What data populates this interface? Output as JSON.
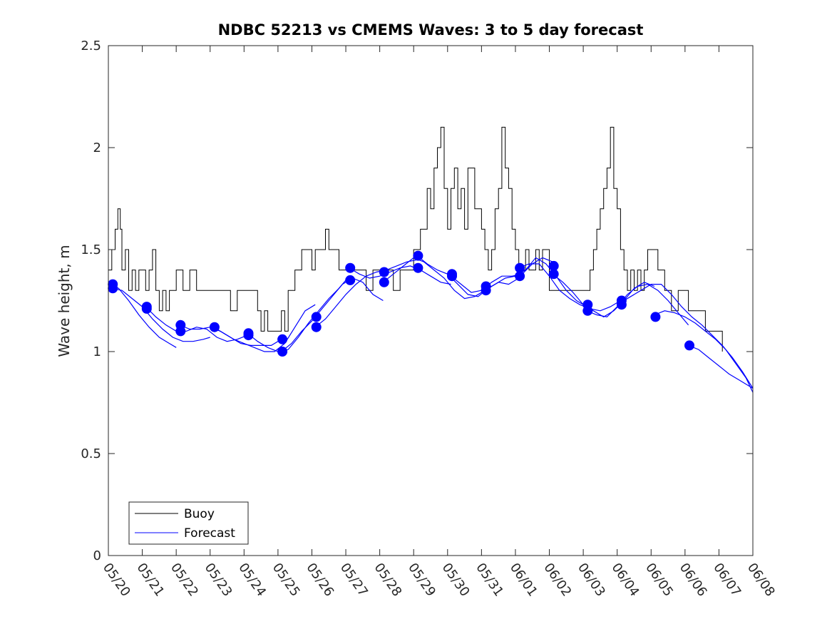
{
  "chart_data": {
    "type": "line",
    "title": "NDBC 52213 vs CMEMS Waves: 3 to 5 day forecast",
    "xlabel": "",
    "ylabel": "Wave height, m",
    "ylim": [
      0,
      2.5
    ],
    "yticks": [
      "0",
      "0.5",
      "1",
      "1.5",
      "2",
      "2.5"
    ],
    "xlim": [
      "05/20",
      "06/08"
    ],
    "xticks": [
      "05/20",
      "05/21",
      "05/22",
      "05/23",
      "05/24",
      "05/25",
      "05/26",
      "05/27",
      "05/28",
      "05/29",
      "05/30",
      "05/31",
      "06/01",
      "06/02",
      "06/03",
      "06/04",
      "06/05",
      "06/06",
      "06/07",
      "06/08"
    ],
    "grid": false,
    "legend": {
      "position": "bottom-left",
      "entries": [
        "Buoy",
        "Forecast"
      ]
    },
    "colors": {
      "buoy": "#000000",
      "forecast": "#0000ff"
    },
    "series": [
      {
        "name": "Buoy",
        "x_days": [
          0.0,
          0.1,
          0.2,
          0.28,
          0.35,
          0.4,
          0.5,
          0.6,
          0.7,
          0.8,
          0.9,
          1.0,
          1.1,
          1.2,
          1.3,
          1.4,
          1.5,
          1.6,
          1.7,
          1.8,
          1.9,
          2.0,
          2.2,
          2.4,
          2.6,
          2.8,
          3.0,
          3.2,
          3.4,
          3.6,
          3.8,
          4.0,
          4.2,
          4.4,
          4.5,
          4.6,
          4.7,
          4.8,
          4.9,
          5.0,
          5.1,
          5.2,
          5.3,
          5.4,
          5.5,
          5.6,
          5.7,
          5.8,
          5.9,
          6.0,
          6.1,
          6.2,
          6.3,
          6.4,
          6.5,
          6.6,
          6.7,
          6.8,
          6.9,
          7.0,
          7.2,
          7.4,
          7.6,
          7.8,
          8.0,
          8.2,
          8.4,
          8.6,
          8.8,
          9.0,
          9.2,
          9.4,
          9.5,
          9.6,
          9.7,
          9.8,
          9.9,
          10.0,
          10.1,
          10.2,
          10.3,
          10.4,
          10.5,
          10.6,
          10.8,
          11.0,
          11.1,
          11.2,
          11.3,
          11.4,
          11.5,
          11.6,
          11.7,
          11.8,
          11.9,
          12.0,
          12.1,
          12.2,
          12.3,
          12.4,
          12.5,
          12.6,
          12.7,
          12.8,
          13.0,
          13.2,
          13.4,
          13.6,
          13.8,
          14.0,
          14.1,
          14.2,
          14.3,
          14.4,
          14.5,
          14.6,
          14.7,
          14.8,
          14.9,
          15.0,
          15.1,
          15.2,
          15.3,
          15.4,
          15.5,
          15.6,
          15.7,
          15.8,
          15.9,
          16.0,
          16.2,
          16.4,
          16.6,
          16.8,
          17.0,
          17.1,
          17.2,
          17.3,
          17.4,
          17.5,
          17.6,
          17.7,
          17.8,
          17.9,
          18.0,
          18.1
        ],
        "values": [
          1.4,
          1.5,
          1.6,
          1.7,
          1.6,
          1.4,
          1.5,
          1.3,
          1.4,
          1.3,
          1.4,
          1.4,
          1.3,
          1.4,
          1.5,
          1.3,
          1.2,
          1.3,
          1.2,
          1.3,
          1.3,
          1.4,
          1.3,
          1.4,
          1.3,
          1.3,
          1.3,
          1.3,
          1.3,
          1.2,
          1.3,
          1.3,
          1.3,
          1.2,
          1.1,
          1.2,
          1.1,
          1.1,
          1.1,
          1.1,
          1.2,
          1.1,
          1.3,
          1.3,
          1.4,
          1.4,
          1.5,
          1.5,
          1.5,
          1.4,
          1.5,
          1.5,
          1.5,
          1.6,
          1.5,
          1.5,
          1.5,
          1.4,
          1.4,
          1.4,
          1.4,
          1.4,
          1.3,
          1.4,
          1.4,
          1.4,
          1.3,
          1.4,
          1.4,
          1.5,
          1.6,
          1.8,
          1.7,
          1.9,
          2.0,
          2.1,
          1.8,
          1.6,
          1.8,
          1.9,
          1.7,
          1.8,
          1.6,
          1.9,
          1.7,
          1.6,
          1.5,
          1.4,
          1.5,
          1.7,
          1.8,
          2.1,
          1.9,
          1.8,
          1.6,
          1.5,
          1.4,
          1.4,
          1.5,
          1.4,
          1.4,
          1.5,
          1.4,
          1.5,
          1.3,
          1.3,
          1.3,
          1.3,
          1.3,
          1.3,
          1.3,
          1.4,
          1.5,
          1.6,
          1.7,
          1.8,
          1.9,
          2.1,
          1.8,
          1.7,
          1.5,
          1.4,
          1.3,
          1.4,
          1.3,
          1.4,
          1.3,
          1.4,
          1.5,
          1.5,
          1.4,
          1.3,
          1.2,
          1.3,
          1.3,
          1.2,
          1.2,
          1.2,
          1.2,
          1.2,
          1.1,
          1.1,
          1.1,
          1.1,
          1.1,
          1.0
        ]
      },
      {
        "name": "Forecast",
        "segments": [
          {
            "x_days": [
              0.0,
              0.3,
              0.6,
              0.9,
              1.2,
              1.5,
              1.8,
              2.0
            ],
            "values": [
              1.33,
              1.31,
              1.25,
              1.18,
              1.12,
              1.07,
              1.04,
              1.02
            ]
          },
          {
            "x_days": [
              0.1,
              0.4,
              0.7,
              1.0,
              1.3,
              1.6,
              1.9,
              2.2,
              2.5,
              2.8,
              3.0
            ],
            "values": [
              1.31,
              1.3,
              1.26,
              1.22,
              1.16,
              1.11,
              1.07,
              1.05,
              1.05,
              1.06,
              1.07
            ]
          },
          {
            "x_days": [
              1.1,
              1.4,
              1.7,
              2.0,
              2.3,
              2.6,
              2.9,
              3.2,
              3.5,
              3.8,
              4.1
            ],
            "values": [
              1.22,
              1.17,
              1.13,
              1.1,
              1.1,
              1.12,
              1.11,
              1.07,
              1.05,
              1.06,
              1.08
            ]
          },
          {
            "x_days": [
              2.1,
              2.4,
              2.7,
              3.0,
              3.3,
              3.6,
              3.9,
              4.2,
              4.5,
              4.8,
              5.1
            ],
            "values": [
              1.13,
              1.11,
              1.11,
              1.12,
              1.1,
              1.07,
              1.04,
              1.03,
              1.03,
              1.03,
              1.06
            ]
          },
          {
            "x_days": [
              3.1,
              3.4,
              3.7,
              4.0,
              4.3,
              4.6,
              4.9,
              5.2,
              5.5,
              5.8,
              6.1
            ],
            "values": [
              1.12,
              1.09,
              1.06,
              1.04,
              1.02,
              1.0,
              1.0,
              1.04,
              1.12,
              1.2,
              1.23
            ]
          },
          {
            "x_days": [
              4.1,
              4.4,
              4.7,
              5.0,
              5.3,
              5.6,
              5.9,
              6.2,
              6.5,
              6.8,
              7.0
            ],
            "values": [
              1.09,
              1.05,
              1.02,
              1.0,
              1.01,
              1.07,
              1.14,
              1.2,
              1.26,
              1.31,
              1.35
            ]
          },
          {
            "x_days": [
              5.1,
              5.4,
              5.7,
              6.0,
              6.3,
              6.6,
              6.9,
              7.2,
              7.5,
              7.8,
              8.1
            ],
            "values": [
              1.0,
              1.04,
              1.1,
              1.15,
              1.21,
              1.27,
              1.33,
              1.36,
              1.34,
              1.28,
              1.25
            ]
          },
          {
            "x_days": [
              6.1,
              6.4,
              6.7,
              7.0,
              7.3,
              7.6,
              7.9,
              8.2,
              8.5,
              8.8,
              9.1
            ],
            "values": [
              1.12,
              1.16,
              1.22,
              1.28,
              1.33,
              1.37,
              1.39,
              1.4,
              1.42,
              1.44,
              1.45
            ]
          },
          {
            "x_days": [
              7.1,
              7.4,
              7.7,
              8.0,
              8.3,
              8.6,
              8.9,
              9.2,
              9.5,
              9.8,
              10.1
            ],
            "values": [
              1.41,
              1.38,
              1.36,
              1.37,
              1.39,
              1.41,
              1.42,
              1.4,
              1.37,
              1.34,
              1.33
            ]
          },
          {
            "x_days": [
              8.1,
              8.4,
              8.7,
              9.0,
              9.3,
              9.6,
              9.9,
              10.2,
              10.5,
              10.8,
              11.1
            ],
            "values": [
              1.34,
              1.38,
              1.42,
              1.46,
              1.44,
              1.4,
              1.36,
              1.3,
              1.26,
              1.27,
              1.3
            ]
          },
          {
            "x_days": [
              9.1,
              9.4,
              9.7,
              10.0,
              10.3,
              10.6,
              10.9,
              11.2,
              11.5,
              11.8,
              12.1
            ],
            "values": [
              1.47,
              1.43,
              1.4,
              1.38,
              1.33,
              1.28,
              1.27,
              1.31,
              1.34,
              1.33,
              1.36
            ]
          },
          {
            "x_days": [
              10.1,
              10.4,
              10.7,
              11.0,
              11.3,
              11.6,
              11.9,
              12.2,
              12.5,
              12.8,
              13.1
            ],
            "values": [
              1.37,
              1.33,
              1.29,
              1.3,
              1.34,
              1.37,
              1.37,
              1.38,
              1.43,
              1.46,
              1.44
            ]
          },
          {
            "x_days": [
              11.1,
              11.4,
              11.7,
              12.0,
              12.3,
              12.6,
              12.9,
              13.2,
              13.5,
              13.8,
              14.1
            ],
            "values": [
              1.3,
              1.33,
              1.36,
              1.37,
              1.4,
              1.46,
              1.43,
              1.37,
              1.3,
              1.25,
              1.22
            ]
          },
          {
            "x_days": [
              12.1,
              12.4,
              12.7,
              13.0,
              13.3,
              13.6,
              13.9,
              14.2,
              14.5,
              14.8,
              15.1
            ],
            "values": [
              1.41,
              1.43,
              1.43,
              1.37,
              1.3,
              1.26,
              1.23,
              1.21,
              1.2,
              1.22,
              1.25
            ]
          },
          {
            "x_days": [
              13.1,
              13.4,
              13.7,
              14.0,
              14.3,
              14.6,
              14.9,
              15.2,
              15.5,
              15.8,
              16.1
            ],
            "values": [
              1.38,
              1.34,
              1.29,
              1.23,
              1.2,
              1.17,
              1.2,
              1.25,
              1.31,
              1.34,
              1.32
            ]
          },
          {
            "x_days": [
              14.1,
              14.4,
              14.7,
              15.0,
              15.3,
              15.6,
              15.9,
              16.2,
              16.5,
              16.8,
              17.1
            ],
            "values": [
              1.2,
              1.18,
              1.17,
              1.22,
              1.28,
              1.32,
              1.33,
              1.3,
              1.25,
              1.19,
              1.13
            ]
          },
          {
            "x_days": [
              15.1,
              15.4,
              15.7,
              16.0,
              16.3,
              16.6,
              16.9,
              17.2,
              17.5,
              17.8,
              18.1,
              18.4,
              18.7,
              19.0
            ],
            "values": [
              1.24,
              1.27,
              1.3,
              1.33,
              1.33,
              1.28,
              1.22,
              1.17,
              1.13,
              1.08,
              1.03,
              0.97,
              0.9,
              0.82
            ]
          },
          {
            "x_days": [
              16.1,
              16.4,
              16.7,
              17.0,
              17.3,
              17.6,
              17.9,
              18.2,
              18.5,
              18.8,
              19.0
            ],
            "values": [
              1.18,
              1.2,
              1.19,
              1.17,
              1.14,
              1.1,
              1.06,
              1.01,
              0.94,
              0.87,
              0.8
            ]
          },
          {
            "x_days": [
              17.1,
              17.4,
              17.7,
              18.0,
              18.3,
              18.6,
              18.9,
              19.0
            ],
            "values": [
              1.03,
              1.01,
              0.97,
              0.93,
              0.89,
              0.86,
              0.83,
              0.82
            ]
          }
        ],
        "markers": [
          {
            "x_day": 0.13,
            "values": [
              1.33,
              1.31
            ]
          },
          {
            "x_day": 1.13,
            "values": [
              1.22,
              1.21
            ]
          },
          {
            "x_day": 2.13,
            "values": [
              1.13,
              1.1
            ]
          },
          {
            "x_day": 3.13,
            "values": [
              1.12
            ]
          },
          {
            "x_day": 4.13,
            "values": [
              1.09,
              1.08
            ]
          },
          {
            "x_day": 5.13,
            "values": [
              1.06,
              1.0
            ]
          },
          {
            "x_day": 6.13,
            "values": [
              1.17,
              1.12
            ]
          },
          {
            "x_day": 7.13,
            "values": [
              1.41,
              1.35
            ]
          },
          {
            "x_day": 8.13,
            "values": [
              1.39,
              1.34
            ]
          },
          {
            "x_day": 9.13,
            "values": [
              1.47,
              1.41
            ]
          },
          {
            "x_day": 10.13,
            "values": [
              1.38,
              1.37
            ]
          },
          {
            "x_day": 11.13,
            "values": [
              1.32,
              1.3
            ]
          },
          {
            "x_day": 12.13,
            "values": [
              1.41,
              1.37
            ]
          },
          {
            "x_day": 13.13,
            "values": [
              1.42,
              1.38
            ]
          },
          {
            "x_day": 14.13,
            "values": [
              1.23,
              1.2
            ]
          },
          {
            "x_day": 15.13,
            "values": [
              1.25,
              1.23
            ]
          },
          {
            "x_day": 16.13,
            "values": [
              1.17
            ]
          },
          {
            "x_day": 17.13,
            "values": [
              1.03
            ]
          }
        ]
      }
    ]
  }
}
